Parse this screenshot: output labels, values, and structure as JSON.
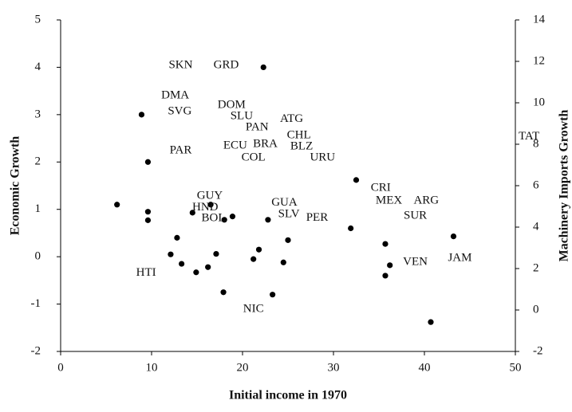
{
  "chart_data": {
    "type": "scatter",
    "x_label": "Initial  income in 1970",
    "y_label": "Economic Growth",
    "y2_label": "Machinery Imports Growth",
    "xlim": [
      0,
      50
    ],
    "xticks": [
      0,
      10,
      20,
      30,
      40,
      50
    ],
    "ylim": [
      -2,
      5
    ],
    "yticks": [
      -2,
      -1,
      0,
      1,
      2,
      3,
      4,
      5
    ],
    "y2lim": [
      -2,
      14
    ],
    "y2ticks": [
      -2,
      0,
      2,
      4,
      6,
      8,
      10,
      12,
      14
    ],
    "color": "#000000",
    "x": [
      6.2,
      8.9,
      9.6,
      9.6,
      9.6,
      12.8,
      12.1,
      13.3,
      14.9,
      16.2,
      17.1,
      17.9,
      14.5,
      16.5,
      18.0,
      18.9,
      21.2,
      21.8,
      22.3,
      22.8,
      23.3,
      24.5,
      25.0,
      31.9,
      32.5,
      35.7,
      35.7,
      36.2,
      40.7,
      43.2
    ],
    "values": [
      1.1,
      3.0,
      2.0,
      0.95,
      0.77,
      0.4,
      0.05,
      -0.15,
      -0.33,
      -0.22,
      0.06,
      -0.75,
      0.93,
      1.1,
      0.78,
      0.85,
      -0.05,
      0.15,
      4.0,
      0.78,
      -0.8,
      -0.12,
      0.35,
      0.6,
      1.62,
      0.27,
      -0.4,
      -0.18,
      -1.38,
      0.43
    ],
    "labels": [
      {
        "text": "SKN",
        "x": 13.2,
        "y": 4.04
      },
      {
        "text": "GRD",
        "x": 18.2,
        "y": 4.04
      },
      {
        "text": "DMA",
        "x": 12.6,
        "y": 3.4
      },
      {
        "text": "SVG",
        "x": 13.1,
        "y": 3.06
      },
      {
        "text": "DOM",
        "x": 18.8,
        "y": 3.2
      },
      {
        "text": "SLU",
        "x": 19.9,
        "y": 2.96
      },
      {
        "text": "PAN",
        "x": 21.6,
        "y": 2.73
      },
      {
        "text": "ATG",
        "x": 25.4,
        "y": 2.9
      },
      {
        "text": "CHL",
        "x": 26.2,
        "y": 2.56
      },
      {
        "text": "TAT",
        "x": 51.5,
        "y": 2.53
      },
      {
        "text": "URU",
        "x": 28.8,
        "y": 2.09
      },
      {
        "text": "PAR",
        "x": 13.2,
        "y": 2.24
      },
      {
        "text": "ECU",
        "x": 19.2,
        "y": 2.34
      },
      {
        "text": "BRA",
        "x": 22.5,
        "y": 2.37
      },
      {
        "text": "BLZ",
        "x": 26.5,
        "y": 2.32
      },
      {
        "text": "COL",
        "x": 21.2,
        "y": 2.09
      },
      {
        "text": "GUY",
        "x": 16.4,
        "y": 1.28
      },
      {
        "text": "HND",
        "x": 15.9,
        "y": 1.04
      },
      {
        "text": "BOL",
        "x": 16.8,
        "y": 0.81
      },
      {
        "text": "GUA",
        "x": 24.6,
        "y": 1.14
      },
      {
        "text": "SLV",
        "x": 25.1,
        "y": 0.89
      },
      {
        "text": "PER",
        "x": 28.2,
        "y": 0.82
      },
      {
        "text": "CRI",
        "x": 35.2,
        "y": 1.45
      },
      {
        "text": "MEX",
        "x": 36.1,
        "y": 1.18
      },
      {
        "text": "ARG",
        "x": 40.2,
        "y": 1.18
      },
      {
        "text": "SUR",
        "x": 39.0,
        "y": 0.86
      },
      {
        "text": "HTI",
        "x": 9.4,
        "y": -0.34
      },
      {
        "text": "VEN",
        "x": 39.0,
        "y": -0.12
      },
      {
        "text": "JAM",
        "x": 43.9,
        "y": -0.03
      },
      {
        "text": "NIC",
        "x": 21.2,
        "y": -1.11
      }
    ]
  }
}
